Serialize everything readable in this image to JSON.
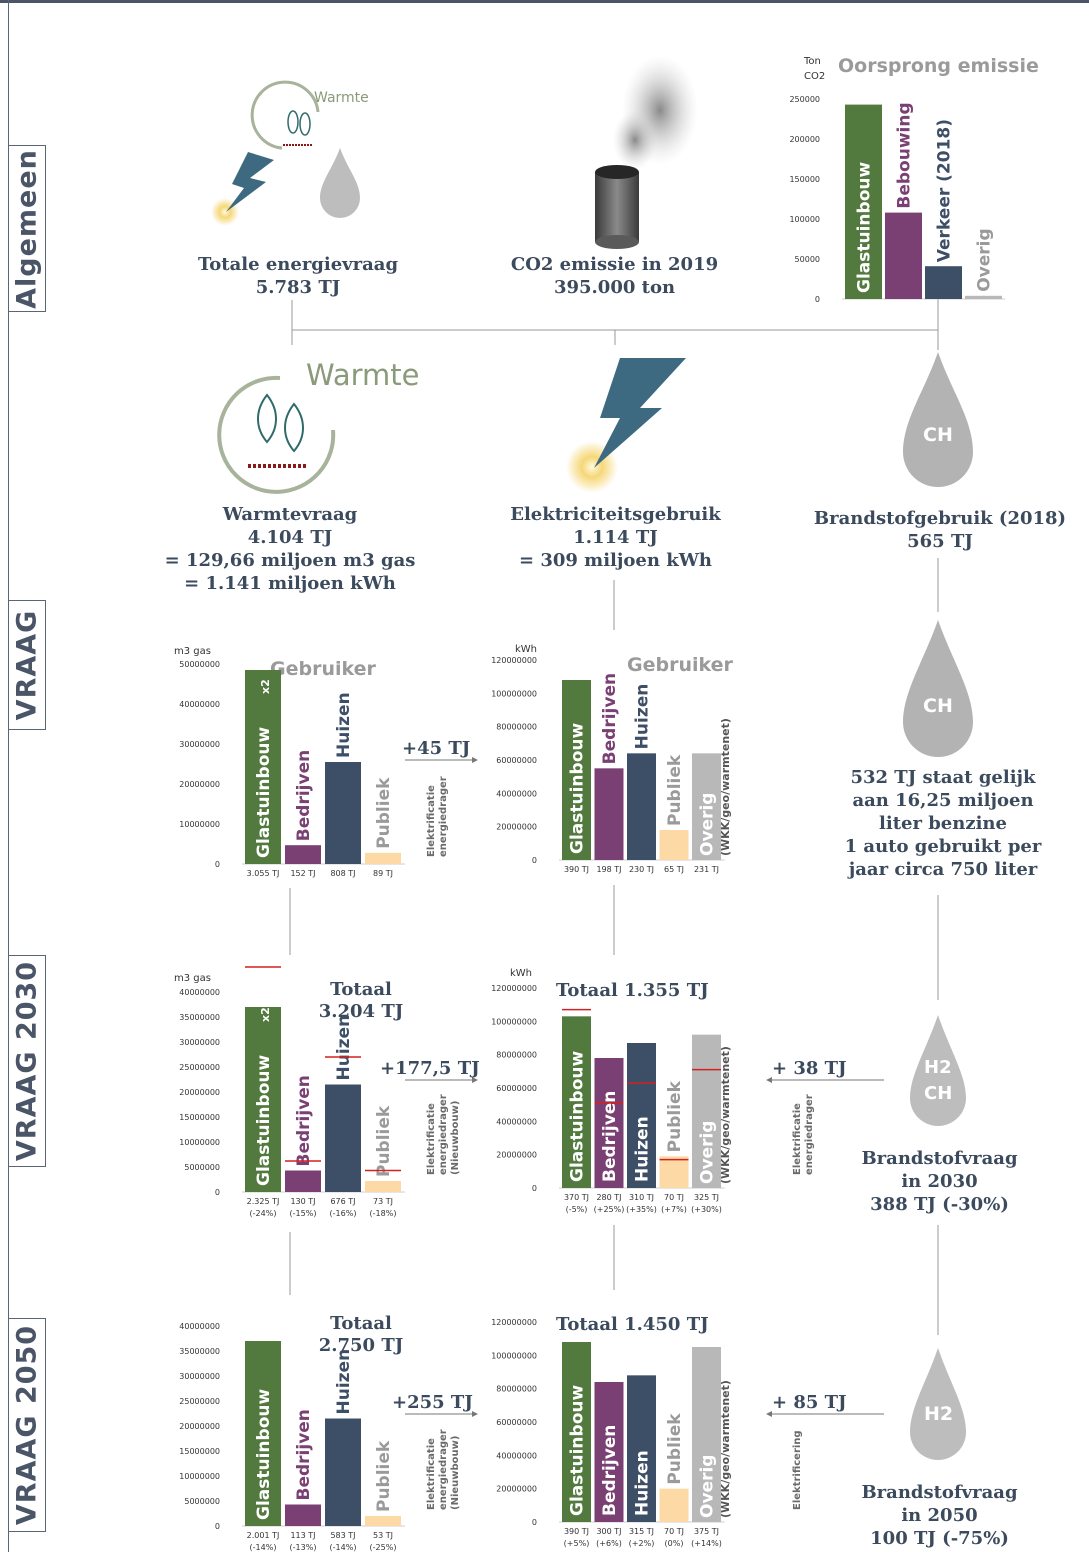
{
  "sections": {
    "algemeen": "Algemeen",
    "vraag": "VRAAG",
    "vraag2030": "VRAAG 2030",
    "vraag2050": "VRAAG 2050"
  },
  "icons": {
    "warmte_small": "Warmte",
    "warmte_big": "Warmte",
    "ch": "CH",
    "h2": "H2"
  },
  "top": {
    "energie": {
      "l1": "Totale energievraag",
      "l2": "5.783 TJ"
    },
    "co2": {
      "l1": "CO2 emissie in 2019",
      "l2": "395.000 ton"
    }
  },
  "mid": {
    "warmte": {
      "l1": "Warmtevraag",
      "l2": "4.104 TJ",
      "l3": "= 129,66 miljoen m3 gas",
      "l4": "= 1.141 miljoen kWh"
    },
    "elek": {
      "l1": "Elektriciteitsgebruik",
      "l2": "1.114 TJ",
      "l3": "= 309 miljoen kWh"
    },
    "brand": {
      "l1": "Brandstofgebruik (2018)",
      "l2": "565 TJ"
    }
  },
  "benzine": {
    "l1": "532 TJ staat gelijk",
    "l2": "aan 16,25 miljoen",
    "l3": "liter benzine",
    "l4": "1 auto gebruikt per",
    "l5": "jaar circa 750 liter"
  },
  "brandstof2030": {
    "l1": "Brandstofvraag",
    "l2": "in 2030",
    "l3": "388 TJ (-30%)"
  },
  "brandstof2050": {
    "l1": "Brandstofvraag",
    "l2": "in 2050",
    "l3": "100 TJ (-75%)"
  },
  "arrows": {
    "a1": {
      "label": "+45 TJ",
      "note1": "Elektrificatie",
      "note2": "energiedrager",
      "note3": ""
    },
    "a2": {
      "label": "+177,5 TJ",
      "note1": "Elektrificatie",
      "note2": "energiedrager",
      "note3": "(Nieuwbouw)"
    },
    "a3": {
      "label": "+255 TJ",
      "note1": "Elektrificatie",
      "note2": "energiedrager",
      "note3": "(Nieuwbouw)"
    },
    "a4": {
      "label": "+ 38 TJ",
      "note1": "Elektrificatie",
      "note2": "energiedrager",
      "note3": ""
    },
    "a5": {
      "label": "+ 85 TJ",
      "note1": "Elektrificering",
      "note2": "",
      "note3": ""
    }
  },
  "colors": {
    "glastuinbouw": "#527a3e",
    "bedrijven": "#7a3f73",
    "huizen": "#3d4f66",
    "publiek": "#fcd9a5",
    "overig": "#b8b8b8",
    "redline": "#d42020",
    "text": "#3b4a5c"
  },
  "chart_data": [
    {
      "id": "emissie",
      "type": "bar",
      "title": "Oorsprong emissie",
      "ylabel": "Ton CO2",
      "ylim": [
        0,
        250000
      ],
      "yticks": [
        0,
        50000,
        100000,
        150000,
        200000,
        250000
      ],
      "categories": [
        "Glastuinbouw",
        "Bebouwing",
        "Verkeer (2018)",
        "Overig"
      ],
      "values": [
        243000,
        108000,
        41000,
        4000
      ]
    },
    {
      "id": "gas",
      "type": "bar",
      "title": "Gebruiker",
      "ylabel": "m3 gas",
      "ylim": [
        0,
        50000000
      ],
      "yticks": [
        0,
        10000000,
        20000000,
        30000000,
        40000000,
        50000000
      ],
      "categories": [
        "Glastuinbouw x2",
        "Bedrijven",
        "Huizen",
        "Publiek"
      ],
      "values": [
        48500000,
        4700000,
        25500000,
        2800000
      ],
      "data_labels": [
        "3.055 TJ",
        "152 TJ",
        "808 TJ",
        "89 TJ"
      ]
    },
    {
      "id": "kwh",
      "type": "bar",
      "title": "Gebruiker",
      "ylabel": "kWh",
      "ylim": [
        0,
        120000000
      ],
      "yticks": [
        0,
        20000000,
        40000000,
        60000000,
        80000000,
        100000000,
        120000000
      ],
      "categories": [
        "Glastuinbouw",
        "Bedrijven",
        "Huizen",
        "Publiek",
        "Overig (WKK/geo/warmtenet)"
      ],
      "values": [
        108000000,
        55000000,
        64000000,
        18000000,
        64000000
      ],
      "data_labels": [
        "390 TJ",
        "198 TJ",
        "230 TJ",
        "65 TJ",
        "231 TJ"
      ]
    },
    {
      "id": "gas2030",
      "type": "bar",
      "title": "Totaal 3.204 TJ",
      "ylabel": "m3 gas",
      "ylim": [
        0,
        40000000
      ],
      "yticks": [
        0,
        5000000,
        10000000,
        15000000,
        20000000,
        25000000,
        30000000,
        35000000,
        40000000
      ],
      "categories": [
        "Glastuinbouw x2",
        "Bedrijven",
        "Huizen",
        "Publiek"
      ],
      "values": [
        37000000,
        4300000,
        21500000,
        2200000
      ],
      "reference_values": [
        45000000,
        6200000,
        27000000,
        4300000
      ],
      "data_labels": [
        "2.325 TJ",
        "130 TJ",
        "676 TJ",
        "73 TJ"
      ],
      "data_labels2": [
        "(-24%)",
        "(-15%)",
        "(-16%)",
        "(-18%)"
      ]
    },
    {
      "id": "kwh2030",
      "type": "bar",
      "title": "Totaal 1.355 TJ",
      "ylabel": "kWh",
      "ylim": [
        0,
        120000000
      ],
      "yticks": [
        0,
        20000000,
        40000000,
        60000000,
        80000000,
        100000000,
        120000000
      ],
      "categories": [
        "Glastuinbouw",
        "Bedrijven",
        "Huizen",
        "Publiek",
        "Overig (WKK/geo/warmtenet)"
      ],
      "values": [
        103000000,
        78000000,
        87000000,
        19000000,
        92000000
      ],
      "reference_values": [
        107000000,
        51000000,
        63000000,
        17000000,
        71000000
      ],
      "data_labels": [
        "370 TJ",
        "280 TJ",
        "310 TJ",
        "70 TJ",
        "325 TJ"
      ],
      "data_labels2": [
        "(-5%)",
        "(+25%)",
        "(+35%)",
        "(+7%)",
        "(+30%)"
      ]
    },
    {
      "id": "gas2050",
      "type": "bar",
      "title": "Totaal 2.750 TJ",
      "ylabel": "",
      "ylim": [
        0,
        40000000
      ],
      "yticks": [
        0,
        5000000,
        10000000,
        15000000,
        20000000,
        25000000,
        30000000,
        35000000,
        40000000
      ],
      "categories": [
        "Glastuinbouw",
        "Bedrijven",
        "Huizen",
        "Publiek"
      ],
      "values": [
        37000000,
        4300000,
        21500000,
        2000000
      ],
      "data_labels": [
        "2.001 TJ",
        "113 TJ",
        "583 TJ",
        "53 TJ"
      ],
      "data_labels2": [
        "(-14%)",
        "(-13%)",
        "(-14%)",
        "(-25%)"
      ]
    },
    {
      "id": "kwh2050",
      "type": "bar",
      "title": "Totaal 1.450 TJ",
      "ylabel": "",
      "ylim": [
        0,
        120000000
      ],
      "yticks": [
        0,
        20000000,
        40000000,
        60000000,
        80000000,
        100000000,
        120000000
      ],
      "categories": [
        "Glastuinbouw",
        "Bedrijven",
        "Huizen",
        "Publiek",
        "Overig (WKK/geo/warmtenet)"
      ],
      "values": [
        108000000,
        84000000,
        88000000,
        20000000,
        105000000
      ],
      "data_labels": [
        "390 TJ",
        "300 TJ",
        "315 TJ",
        "70 TJ",
        "375 TJ"
      ],
      "data_labels2": [
        "(+5%)",
        "(+6%)",
        "(+2%)",
        "(0%)",
        "(+14%)"
      ]
    }
  ]
}
